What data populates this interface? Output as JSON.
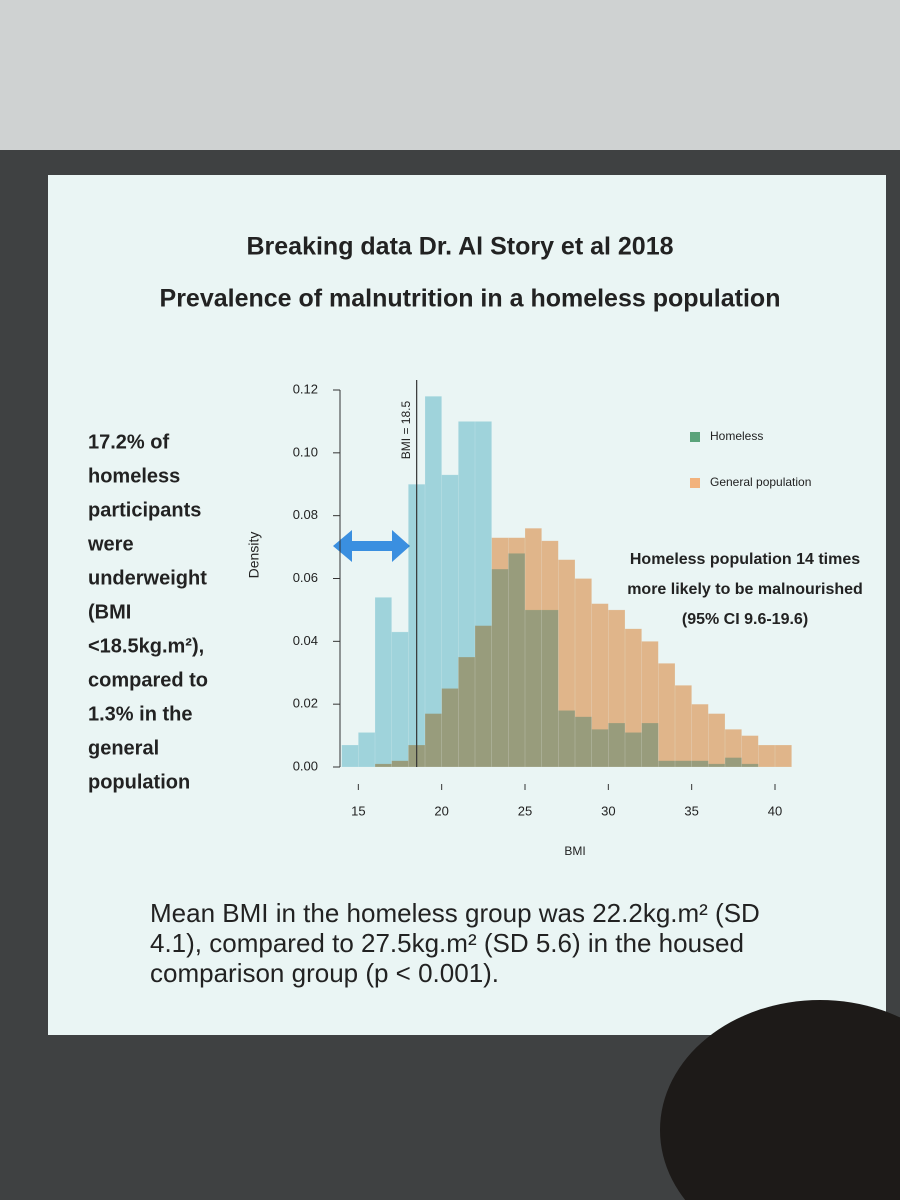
{
  "chart_data": {
    "type": "histogram",
    "title": "Breaking data Dr. Al Story et al 2018",
    "subtitle": "Prevalence of malnutrition in a homeless population",
    "x_label": "BMI",
    "y_label": "Density",
    "bins": [
      14,
      15,
      16,
      17,
      18,
      19,
      20,
      21,
      22,
      23,
      24,
      25,
      26,
      27,
      28,
      29,
      30,
      31,
      32,
      33,
      34,
      35,
      36,
      37,
      38,
      39,
      40,
      41
    ],
    "series": [
      {
        "name": "Homeless",
        "color": "#9fd6e0",
        "values": [
          0.007,
          0.011,
          0.054,
          0.043,
          0.09,
          0.118,
          0.093,
          0.11,
          0.11,
          0.063,
          0.068,
          0.05,
          0.05,
          0.018,
          0.016,
          0.012,
          0.014,
          0.011,
          0.014,
          0.002,
          0.002,
          0.002,
          0.001,
          0.003,
          0.001,
          0,
          0
        ]
      },
      {
        "name": "General population",
        "color": "#f2b27c",
        "values": [
          0,
          0,
          0.001,
          0.002,
          0.007,
          0.017,
          0.025,
          0.035,
          0.045,
          0.073,
          0.073,
          0.076,
          0.072,
          0.066,
          0.06,
          0.052,
          0.05,
          0.044,
          0.04,
          0.033,
          0.026,
          0.02,
          0.017,
          0.012,
          0.01,
          0.007,
          0.007
        ]
      }
    ],
    "xlim": [
      13.6,
      41.2
    ],
    "xticks": [
      15,
      20,
      25,
      30,
      35,
      40
    ],
    "ylim": [
      0,
      0.12
    ],
    "yticks": [
      {
        "value": 0,
        "label": "0.00"
      },
      0.02,
      0.04,
      0.06,
      0.08,
      {
        "value": 0.1,
        "label": "0.10"
      },
      0.12
    ],
    "reference_line": {
      "x": 18.5,
      "label": "BMI = 18.5"
    },
    "legend": "upper right",
    "annotation": [
      "Homeless population 14 times",
      "more likely to be malnourished",
      "(95% CI 9.6-19.6)"
    ]
  },
  "side_note": [
    "17.2% of",
    "homeless",
    "participants",
    "were",
    "underweight",
    "(BMI",
    "<18.5kg.m²),",
    "compared to",
    "1.3% in the",
    "general",
    "population"
  ],
  "footer": [
    "Mean BMI in the homeless group was 22.2kg.m² (SD",
    "4.1), compared to 27.5kg.m² (SD 5.6) in the housed",
    "comparison group (p < 0.001)."
  ]
}
